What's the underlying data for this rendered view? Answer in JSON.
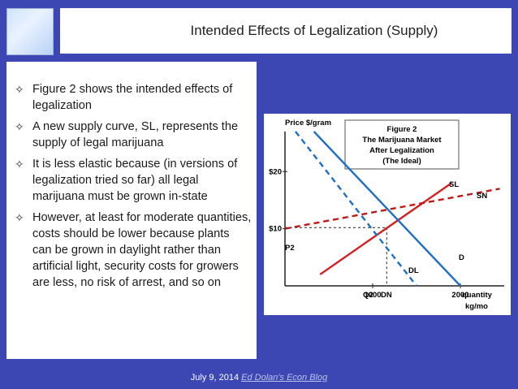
{
  "header": {
    "title": "Intended Effects of Legalization (Supply)"
  },
  "bullets": [
    "Figure 2 shows the intended effects of legalization",
    "A new supply curve, SL, represents the supply of legal marijuana",
    "It is less elastic because (in versions of legalization tried so far) all legal marijuana must be grown in-state",
    "However, at least for moderate quantities, costs should be lower because plants can be grown in daylight rather than artificial light, security costs for growers are less, no risk of arrest, and so on"
  ],
  "figure": {
    "caption_line1": "Figure 2",
    "caption_line2": "The Marijuana Market",
    "caption_line3": "After Legalization",
    "caption_line4": "(The Ideal)",
    "y_axis_label": "Price $/gram",
    "x_axis_label_1": "quantity",
    "x_axis_label_2": "kg/mo",
    "label_sl": "SL",
    "label_sn": "SN",
    "label_dl": "DL",
    "label_dn": "DN",
    "label_d": "D",
    "label_p2": "P2",
    "label_q2": "Q2"
  },
  "chart_data": {
    "type": "line",
    "y_tick_labels": [
      "$20",
      "$10"
    ],
    "x_tick_labels": [
      "1000",
      "2000"
    ],
    "y_ticks": [
      20,
      10
    ],
    "x_ticks": [
      1000,
      2000
    ],
    "xlim": [
      0,
      2500
    ],
    "ylim": [
      0,
      27
    ],
    "series": [
      {
        "name": "SL",
        "style": "solid",
        "color": "#d42020",
        "x": [
          400,
          1900
        ],
        "y": [
          2,
          18
        ]
      },
      {
        "name": "SN",
        "style": "dashed",
        "color": "#c01818",
        "x": [
          0,
          2450
        ],
        "y": [
          10,
          17
        ]
      },
      {
        "name": "DL",
        "style": "solid",
        "color": "#1f6fc6",
        "x": [
          330,
          2000
        ],
        "y": [
          27,
          0
        ]
      },
      {
        "name": "DN",
        "style": "dashed",
        "color": "#1f6fc6",
        "x": [
          120,
          1500
        ],
        "y": [
          27,
          0
        ]
      }
    ],
    "equilibrium": {
      "x": 1160,
      "y": 10.2
    },
    "colors": {
      "supply": "#d42020",
      "demand": "#1f6fc6"
    }
  },
  "footer": {
    "date": "July 9, 2014",
    "link_text": "Ed Dolan's Econ Blog"
  }
}
